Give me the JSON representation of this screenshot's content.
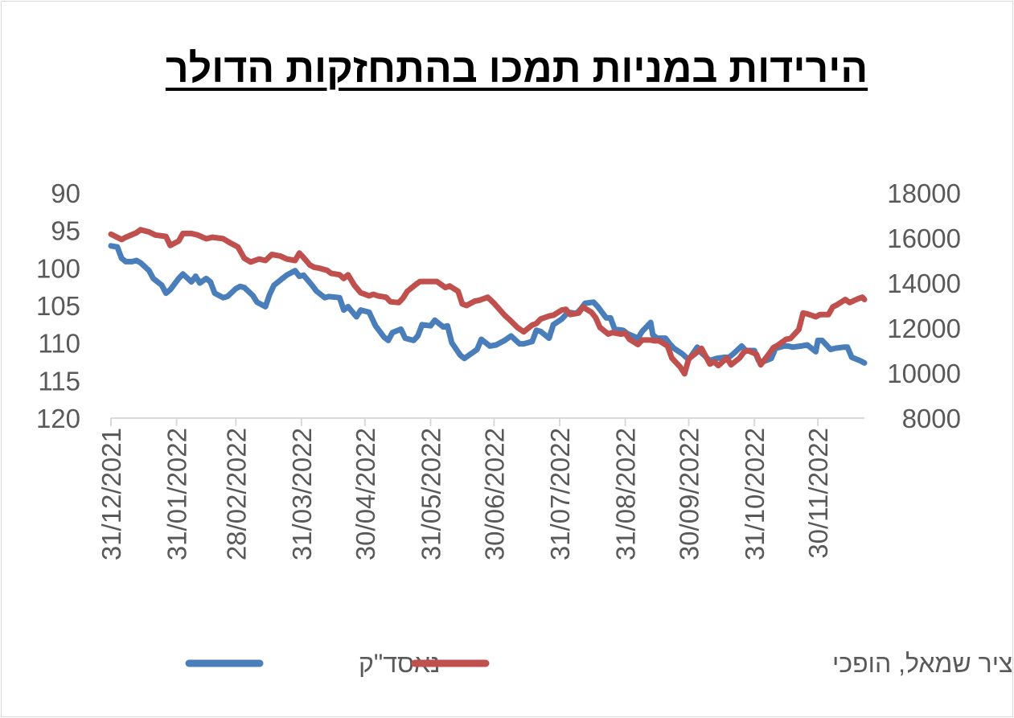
{
  "chart_data": {
    "type": "line",
    "title": "הירידות במניות תמכו בהתחזקות הדולר",
    "x_labels": [
      "31/12/2021",
      "31/01/2022",
      "28/02/2022",
      "31/03/2022",
      "30/04/2022",
      "31/05/2022",
      "30/06/2022",
      "31/07/2022",
      "31/08/2022",
      "30/09/2022",
      "31/10/2022",
      "30/11/2022"
    ],
    "x_range": [
      "2021-12-31",
      "2022-12-22"
    ],
    "left_axis": {
      "min": 90,
      "max": 120,
      "reversed": true,
      "ticks": [
        "90",
        "95",
        "100",
        "105",
        "110",
        "115",
        "120"
      ]
    },
    "right_axis": {
      "min": 8000,
      "max": 18000,
      "ticks": [
        "18000",
        "16000",
        "14000",
        "12000",
        "10000",
        "8000"
      ]
    },
    "legend_position": "bottom",
    "series": [
      {
        "name": "נאסד\"ק",
        "axis": "right",
        "color": "#4a7ebb",
        "points": [
          [
            "2021-12-31",
            15650
          ],
          [
            "2022-01-03",
            15600
          ],
          [
            "2022-01-05",
            15100
          ],
          [
            "2022-01-07",
            14950
          ],
          [
            "2022-01-10",
            14950
          ],
          [
            "2022-01-12",
            15000
          ],
          [
            "2022-01-14",
            14900
          ],
          [
            "2022-01-18",
            14550
          ],
          [
            "2022-01-20",
            14200
          ],
          [
            "2022-01-24",
            13900
          ],
          [
            "2022-01-26",
            13550
          ],
          [
            "2022-01-28",
            13700
          ],
          [
            "2022-02-01",
            14200
          ],
          [
            "2022-02-03",
            14400
          ],
          [
            "2022-02-07",
            14050
          ],
          [
            "2022-02-09",
            14300
          ],
          [
            "2022-02-11",
            14000
          ],
          [
            "2022-02-14",
            14200
          ],
          [
            "2022-02-16",
            14050
          ],
          [
            "2022-02-18",
            13550
          ],
          [
            "2022-02-22",
            13350
          ],
          [
            "2022-02-24",
            13400
          ],
          [
            "2022-02-28",
            13750
          ],
          [
            "2022-03-02",
            13850
          ],
          [
            "2022-03-04",
            13800
          ],
          [
            "2022-03-08",
            13450
          ],
          [
            "2022-03-10",
            13150
          ],
          [
            "2022-03-14",
            12950
          ],
          [
            "2022-03-16",
            13500
          ],
          [
            "2022-03-18",
            13900
          ],
          [
            "2022-03-22",
            14200
          ],
          [
            "2022-03-24",
            14350
          ],
          [
            "2022-03-28",
            14550
          ],
          [
            "2022-03-30",
            14300
          ],
          [
            "2022-04-01",
            14350
          ],
          [
            "2022-04-05",
            13900
          ],
          [
            "2022-04-07",
            13650
          ],
          [
            "2022-04-11",
            13350
          ],
          [
            "2022-04-13",
            13400
          ],
          [
            "2022-04-18",
            13350
          ],
          [
            "2022-04-20",
            12800
          ],
          [
            "2022-04-22",
            12950
          ],
          [
            "2022-04-26",
            12500
          ],
          [
            "2022-04-28",
            12800
          ],
          [
            "2022-05-02",
            12700
          ],
          [
            "2022-05-05",
            12100
          ],
          [
            "2022-05-09",
            11600
          ],
          [
            "2022-05-11",
            11450
          ],
          [
            "2022-05-13",
            11800
          ],
          [
            "2022-05-17",
            11950
          ],
          [
            "2022-05-19",
            11550
          ],
          [
            "2022-05-23",
            11450
          ],
          [
            "2022-05-25",
            11650
          ],
          [
            "2022-05-27",
            12150
          ],
          [
            "2022-05-31",
            12100
          ],
          [
            "2022-06-02",
            12350
          ],
          [
            "2022-06-06",
            12050
          ],
          [
            "2022-06-08",
            12100
          ],
          [
            "2022-06-10",
            11350
          ],
          [
            "2022-06-14",
            10800
          ],
          [
            "2022-06-16",
            10650
          ],
          [
            "2022-06-22",
            11050
          ],
          [
            "2022-06-24",
            11500
          ],
          [
            "2022-06-28",
            11200
          ],
          [
            "2022-07-01",
            11250
          ],
          [
            "2022-07-05",
            11450
          ],
          [
            "2022-07-08",
            11650
          ],
          [
            "2022-07-12",
            11300
          ],
          [
            "2022-07-14",
            11300
          ],
          [
            "2022-07-18",
            11400
          ],
          [
            "2022-07-20",
            11900
          ],
          [
            "2022-07-22",
            11850
          ],
          [
            "2022-07-26",
            11550
          ],
          [
            "2022-07-28",
            12150
          ],
          [
            "2022-08-01",
            12400
          ],
          [
            "2022-08-04",
            12700
          ],
          [
            "2022-08-08",
            12650
          ],
          [
            "2022-08-10",
            12850
          ],
          [
            "2022-08-12",
            13100
          ],
          [
            "2022-08-16",
            13150
          ],
          [
            "2022-08-18",
            12950
          ],
          [
            "2022-08-22",
            12450
          ],
          [
            "2022-08-24",
            12450
          ],
          [
            "2022-08-26",
            11950
          ],
          [
            "2022-08-30",
            11900
          ],
          [
            "2022-09-01",
            11750
          ],
          [
            "2022-09-06",
            11550
          ],
          [
            "2022-09-08",
            11850
          ],
          [
            "2022-09-12",
            12250
          ],
          [
            "2022-09-13",
            11700
          ],
          [
            "2022-09-15",
            11550
          ],
          [
            "2022-09-19",
            11550
          ],
          [
            "2022-09-21",
            11300
          ],
          [
            "2022-09-23",
            11100
          ],
          [
            "2022-09-27",
            10850
          ],
          [
            "2022-09-30",
            10600
          ],
          [
            "2022-10-04",
            11150
          ],
          [
            "2022-10-06",
            10900
          ],
          [
            "2022-10-10",
            10550
          ],
          [
            "2022-10-13",
            10650
          ],
          [
            "2022-10-17",
            10700
          ],
          [
            "2022-10-19",
            10700
          ],
          [
            "2022-10-21",
            10850
          ],
          [
            "2022-10-25",
            11200
          ],
          [
            "2022-10-27",
            11000
          ],
          [
            "2022-10-31",
            11000
          ],
          [
            "2022-11-02",
            10550
          ],
          [
            "2022-11-04",
            10500
          ],
          [
            "2022-11-08",
            10650
          ],
          [
            "2022-11-10",
            11100
          ],
          [
            "2022-11-14",
            11200
          ],
          [
            "2022-11-16",
            11200
          ],
          [
            "2022-11-18",
            11150
          ],
          [
            "2022-11-22",
            11200
          ],
          [
            "2022-11-25",
            11250
          ],
          [
            "2022-11-29",
            10950
          ],
          [
            "2022-11-30",
            11450
          ],
          [
            "2022-12-02",
            11450
          ],
          [
            "2022-12-06",
            11050
          ],
          [
            "2022-12-08",
            11100
          ],
          [
            "2022-12-12",
            11150
          ],
          [
            "2022-12-14",
            11150
          ],
          [
            "2022-12-16",
            10700
          ],
          [
            "2022-12-20",
            10550
          ],
          [
            "2022-12-22",
            10450
          ]
        ]
      },
      {
        "name": "סל דולרי- ציר שמאל, הופכי",
        "axis": "left",
        "color": "#c0504d",
        "points": [
          [
            "2021-12-31",
            95.5
          ],
          [
            "2022-01-05",
            96.2
          ],
          [
            "2022-01-07",
            95.9
          ],
          [
            "2022-01-12",
            95.3
          ],
          [
            "2022-01-14",
            94.9
          ],
          [
            "2022-01-18",
            95.2
          ],
          [
            "2022-01-21",
            95.6
          ],
          [
            "2022-01-26",
            95.8
          ],
          [
            "2022-01-28",
            97.0
          ],
          [
            "2022-02-01",
            96.4
          ],
          [
            "2022-02-03",
            95.4
          ],
          [
            "2022-02-07",
            95.4
          ],
          [
            "2022-02-10",
            95.6
          ],
          [
            "2022-02-14",
            96.1
          ],
          [
            "2022-02-17",
            95.9
          ],
          [
            "2022-02-22",
            96.1
          ],
          [
            "2022-02-25",
            96.6
          ],
          [
            "2022-03-01",
            97.2
          ],
          [
            "2022-03-04",
            98.7
          ],
          [
            "2022-03-07",
            99.2
          ],
          [
            "2022-03-09",
            99.0
          ],
          [
            "2022-03-11",
            98.8
          ],
          [
            "2022-03-14",
            99.0
          ],
          [
            "2022-03-17",
            98.2
          ],
          [
            "2022-03-21",
            98.4
          ],
          [
            "2022-03-24",
            98.8
          ],
          [
            "2022-03-28",
            99.0
          ],
          [
            "2022-03-30",
            98.0
          ],
          [
            "2022-04-01",
            98.6
          ],
          [
            "2022-04-04",
            99.6
          ],
          [
            "2022-04-06",
            99.9
          ],
          [
            "2022-04-08",
            100.0
          ],
          [
            "2022-04-12",
            100.3
          ],
          [
            "2022-04-14",
            100.7
          ],
          [
            "2022-04-18",
            100.9
          ],
          [
            "2022-04-20",
            101.4
          ],
          [
            "2022-04-22",
            100.9
          ],
          [
            "2022-04-25",
            102.3
          ],
          [
            "2022-04-28",
            103.3
          ],
          [
            "2022-05-02",
            103.7
          ],
          [
            "2022-05-04",
            103.5
          ],
          [
            "2022-05-06",
            103.7
          ],
          [
            "2022-05-10",
            103.9
          ],
          [
            "2022-05-12",
            104.5
          ],
          [
            "2022-05-16",
            104.6
          ],
          [
            "2022-05-18",
            104.0
          ],
          [
            "2022-05-20",
            103.1
          ],
          [
            "2022-05-24",
            102.2
          ],
          [
            "2022-05-26",
            101.8
          ],
          [
            "2022-05-31",
            101.8
          ],
          [
            "2022-06-03",
            101.8
          ],
          [
            "2022-06-07",
            102.6
          ],
          [
            "2022-06-09",
            102.4
          ],
          [
            "2022-06-13",
            103.1
          ],
          [
            "2022-06-15",
            104.8
          ],
          [
            "2022-06-17",
            105.0
          ],
          [
            "2022-06-21",
            104.4
          ],
          [
            "2022-06-23",
            104.3
          ],
          [
            "2022-06-27",
            103.9
          ],
          [
            "2022-06-30",
            104.7
          ],
          [
            "2022-07-05",
            106.3
          ],
          [
            "2022-07-07",
            106.8
          ],
          [
            "2022-07-11",
            107.9
          ],
          [
            "2022-07-14",
            108.5
          ],
          [
            "2022-07-18",
            107.6
          ],
          [
            "2022-07-20",
            107.4
          ],
          [
            "2022-07-22",
            106.8
          ],
          [
            "2022-07-26",
            106.4
          ],
          [
            "2022-07-28",
            106.3
          ],
          [
            "2022-08-01",
            105.6
          ],
          [
            "2022-08-03",
            105.5
          ],
          [
            "2022-08-05",
            106.2
          ],
          [
            "2022-08-09",
            106.0
          ],
          [
            "2022-08-11",
            105.2
          ],
          [
            "2022-08-15",
            105.9
          ],
          [
            "2022-08-17",
            106.6
          ],
          [
            "2022-08-19",
            107.9
          ],
          [
            "2022-08-23",
            108.8
          ],
          [
            "2022-08-25",
            108.6
          ],
          [
            "2022-08-29",
            108.8
          ],
          [
            "2022-08-31",
            108.7
          ],
          [
            "2022-09-02",
            109.5
          ],
          [
            "2022-09-06",
            110.2
          ],
          [
            "2022-09-08",
            109.6
          ],
          [
            "2022-09-12",
            109.6
          ],
          [
            "2022-09-14",
            109.7
          ],
          [
            "2022-09-16",
            109.7
          ],
          [
            "2022-09-20",
            110.4
          ],
          [
            "2022-09-22",
            112.0
          ],
          [
            "2022-09-26",
            113.2
          ],
          [
            "2022-09-28",
            114.1
          ],
          [
            "2022-09-30",
            112.1
          ],
          [
            "2022-10-04",
            111.2
          ],
          [
            "2022-10-06",
            110.7
          ],
          [
            "2022-10-10",
            112.8
          ],
          [
            "2022-10-12",
            112.5
          ],
          [
            "2022-10-14",
            113.0
          ],
          [
            "2022-10-18",
            112.0
          ],
          [
            "2022-10-20",
            112.9
          ],
          [
            "2022-10-24",
            112.0
          ],
          [
            "2022-10-26",
            111.2
          ],
          [
            "2022-10-28",
            111.0
          ],
          [
            "2022-11-01",
            111.5
          ],
          [
            "2022-11-03",
            112.9
          ],
          [
            "2022-11-07",
            111.4
          ],
          [
            "2022-11-09",
            110.6
          ],
          [
            "2022-11-11",
            110.3
          ],
          [
            "2022-11-15",
            109.5
          ],
          [
            "2022-11-17",
            109.4
          ],
          [
            "2022-11-21",
            108.2
          ],
          [
            "2022-11-23",
            106.0
          ],
          [
            "2022-11-25",
            106.1
          ],
          [
            "2022-11-29",
            106.5
          ],
          [
            "2022-12-01",
            106.2
          ],
          [
            "2022-12-05",
            106.2
          ],
          [
            "2022-12-07",
            105.2
          ],
          [
            "2022-12-09",
            104.9
          ],
          [
            "2022-12-13",
            104.2
          ],
          [
            "2022-12-15",
            104.6
          ],
          [
            "2022-12-19",
            104.1
          ],
          [
            "2022-12-21",
            103.9
          ],
          [
            "2022-12-22",
            104.2
          ]
        ]
      }
    ]
  }
}
